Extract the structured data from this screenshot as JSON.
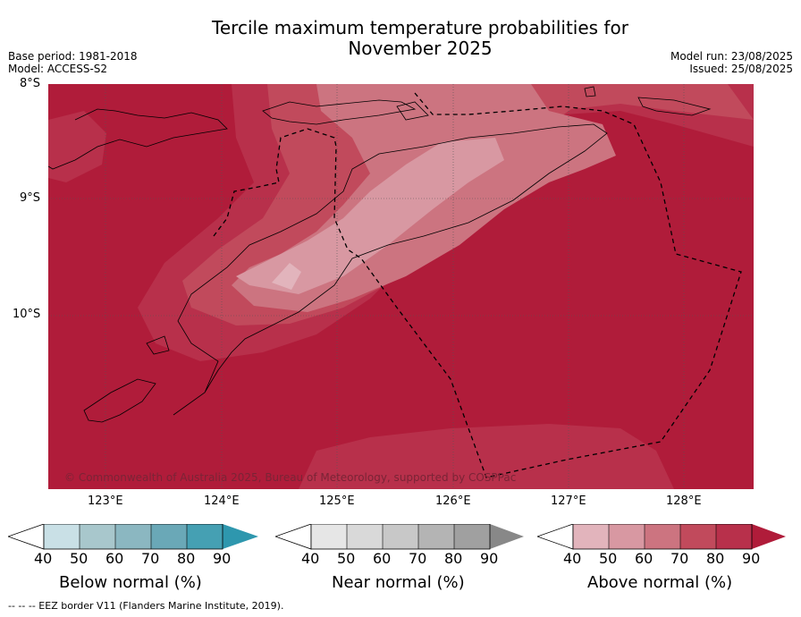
{
  "title_line1": "Tercile maximum temperature probabilities for",
  "title_line2": "November 2025",
  "base_period": "Base period: 1981-2018",
  "model": "Model: ACCESS-S2",
  "model_run": "Model run: 23/08/2025",
  "issued": "Issued: 25/08/2025",
  "map": {
    "lat_labels": [
      "8°S",
      "9°S",
      "10°S"
    ],
    "lon_labels": [
      "123°E",
      "124°E",
      "125°E",
      "126°E",
      "127°E",
      "128°E"
    ],
    "copyright": "© Commonwealth of Australia 2025, Bureau of Meteorology, supported by COSPPac"
  },
  "colorbars": [
    {
      "name": "below",
      "title": "Below normal (%)",
      "ticks": [
        "40",
        "50",
        "60",
        "70",
        "80",
        "90"
      ],
      "colors": [
        "#ffffff",
        "#c9e0e6",
        "#a8c7cc",
        "#8bb7c1",
        "#6aa8b7",
        "#45a0b3",
        "#2e97ae"
      ]
    },
    {
      "name": "near",
      "title": "Near normal (%)",
      "ticks": [
        "40",
        "50",
        "60",
        "70",
        "80",
        "90"
      ],
      "colors": [
        "#ffffff",
        "#e6e6e6",
        "#d9d9d9",
        "#c8c8c8",
        "#b4b4b4",
        "#a0a0a0",
        "#888888"
      ]
    },
    {
      "name": "above",
      "title": "Above normal (%)",
      "ticks": [
        "40",
        "50",
        "60",
        "70",
        "80",
        "90"
      ],
      "colors": [
        "#ffffff",
        "#e2b4bc",
        "#d898a2",
        "#cc7480",
        "#c14a5c",
        "#b8304b",
        "#b01c3a"
      ]
    }
  ],
  "footer": "--  --  -- EEZ border V11 (Flanders Marine Institute, 2019)."
}
